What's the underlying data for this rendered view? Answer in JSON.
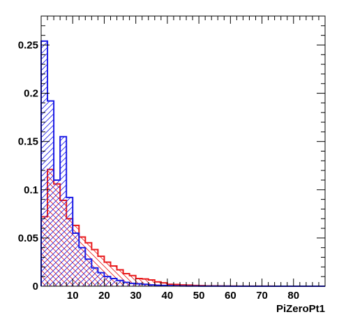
{
  "chart_data": {
    "type": "histogram",
    "title": "",
    "xlabel": "PiZeroPt1",
    "ylabel": "",
    "xlim": [
      0,
      90
    ],
    "ylim": [
      0,
      0.28
    ],
    "bin_width": 2,
    "grid": false,
    "legend": "none",
    "x_ticks": [
      {
        "value": 10,
        "label": "10"
      },
      {
        "value": 20,
        "label": "20"
      },
      {
        "value": 30,
        "label": "30"
      },
      {
        "value": 40,
        "label": "40"
      },
      {
        "value": 50,
        "label": "50"
      },
      {
        "value": 60,
        "label": "60"
      },
      {
        "value": 70,
        "label": "70"
      },
      {
        "value": 80,
        "label": "80"
      }
    ],
    "y_ticks": [
      {
        "value": 0,
        "label": "0"
      },
      {
        "value": 0.05,
        "label": "0.05"
      },
      {
        "value": 0.1,
        "label": "0.1"
      },
      {
        "value": 0.15,
        "label": "0.15"
      },
      {
        "value": 0.2,
        "label": "0.2"
      },
      {
        "value": 0.25,
        "label": "0.25"
      }
    ],
    "series": [
      {
        "color": "#e8191b",
        "hatch": "diagonal-down",
        "values": [
          0.072,
          0.121,
          0.106,
          0.089,
          0.07,
          0.063,
          0.051,
          0.045,
          0.038,
          0.031,
          0.025,
          0.021,
          0.017,
          0.013,
          0.011,
          0.008,
          0.0075,
          0.0065,
          0.0045,
          0.0035,
          0.002,
          0.0018,
          0.0014,
          0.0012,
          0.0008,
          0.0006,
          0.0004,
          0.0004,
          0.0003,
          0.0002,
          0.0002,
          0.0001,
          0.0001,
          0.0001,
          0.0001,
          0.0001,
          0.0001,
          0.0,
          0.0,
          0.0,
          0.0,
          0.0,
          0.0,
          0.0,
          0.0
        ]
      },
      {
        "color": "#1a1ae6",
        "hatch": "diagonal-up",
        "values": [
          0.254,
          0.192,
          0.11,
          0.155,
          0.092,
          0.055,
          0.04,
          0.028,
          0.019,
          0.014,
          0.01,
          0.008,
          0.006,
          0.004,
          0.003,
          0.0025,
          0.002,
          0.0014,
          0.001,
          0.0008,
          0.0006,
          0.0004,
          0.0003,
          0.0002,
          0.0002,
          0.0001,
          0.0001,
          0.0001,
          0.0001,
          0.0001,
          0.0,
          0.0,
          0.0,
          0.0,
          0.0,
          0.0,
          0.0,
          0.0,
          0.0,
          0.0,
          0.0,
          0.0,
          0.0,
          0.0,
          0.0
        ]
      }
    ]
  }
}
